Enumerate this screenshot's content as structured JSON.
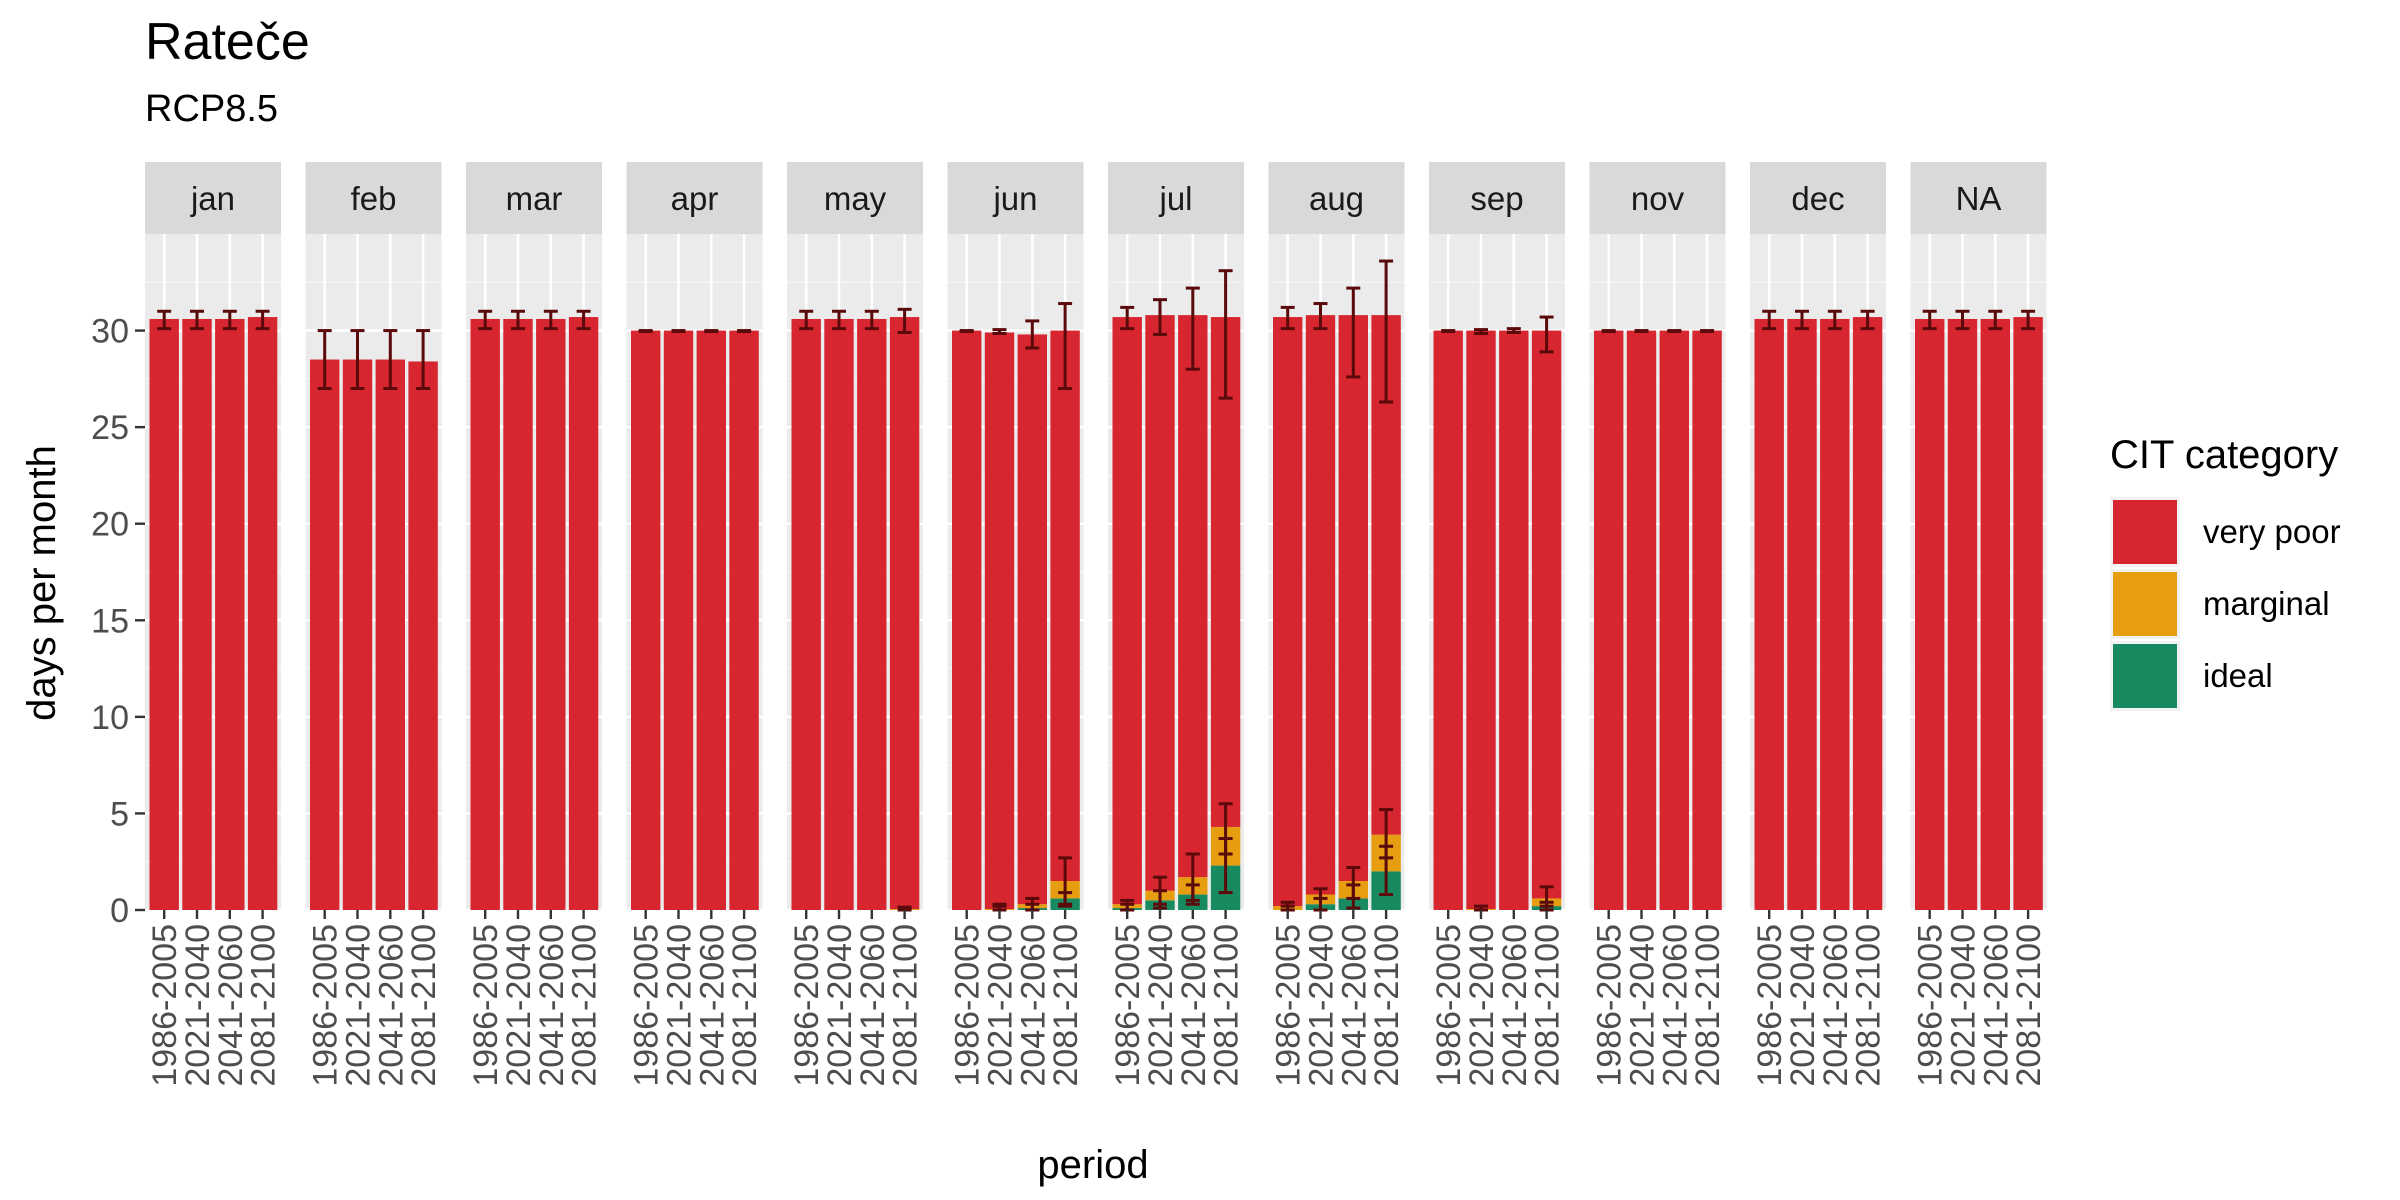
{
  "chart_data": {
    "type": "bar",
    "stacked": true,
    "faceted_by": "month",
    "title": "Rateče",
    "subtitle": "RCP8.5",
    "xlabel": "period",
    "ylabel": "days per month",
    "ylim": [
      0,
      35
    ],
    "y_ticks": [
      0,
      5,
      10,
      15,
      20,
      25,
      30
    ],
    "grid": true,
    "legend": {
      "title": "CIT category",
      "position": "right",
      "entries": [
        {
          "label": "very poor",
          "color": "#D7262F"
        },
        {
          "label": "marginal",
          "color": "#E69D0F"
        },
        {
          "label": "ideal",
          "color": "#188A60"
        }
      ]
    },
    "categories": [
      "1986-2005",
      "2021-2040",
      "2041-2060",
      "2081-2100"
    ],
    "facets": [
      {
        "label": "jan",
        "ideal": [
          0,
          0,
          0,
          0
        ],
        "marginal": [
          0,
          0,
          0,
          0
        ],
        "very_poor": [
          30.6,
          30.6,
          30.6,
          30.7
        ],
        "err_total": [
          [
            30.1,
            31.0
          ],
          [
            30.1,
            31.0
          ],
          [
            30.1,
            31.0
          ],
          [
            30.1,
            31.0
          ]
        ],
        "err_ideal": [
          null,
          null,
          null,
          null
        ],
        "err_marginal": [
          null,
          null,
          null,
          null
        ]
      },
      {
        "label": "feb",
        "ideal": [
          0,
          0,
          0,
          0
        ],
        "marginal": [
          0,
          0,
          0,
          0
        ],
        "very_poor": [
          28.5,
          28.5,
          28.5,
          28.4
        ],
        "err_total": [
          [
            27.0,
            30.0
          ],
          [
            27.0,
            30.0
          ],
          [
            27.0,
            30.0
          ],
          [
            27.0,
            30.0
          ]
        ],
        "err_ideal": [
          null,
          null,
          null,
          null
        ],
        "err_marginal": [
          null,
          null,
          null,
          null
        ]
      },
      {
        "label": "mar",
        "ideal": [
          0,
          0,
          0,
          0
        ],
        "marginal": [
          0,
          0,
          0,
          0
        ],
        "very_poor": [
          30.6,
          30.6,
          30.6,
          30.7
        ],
        "err_total": [
          [
            30.1,
            31.0
          ],
          [
            30.1,
            31.0
          ],
          [
            30.1,
            31.0
          ],
          [
            30.1,
            31.0
          ]
        ],
        "err_ideal": [
          null,
          null,
          null,
          null
        ],
        "err_marginal": [
          null,
          null,
          null,
          null
        ]
      },
      {
        "label": "apr",
        "ideal": [
          0,
          0,
          0,
          0
        ],
        "marginal": [
          0,
          0,
          0,
          0
        ],
        "very_poor": [
          30.0,
          30.0,
          30.0,
          30.0
        ],
        "err_total": [
          [
            29.95,
            30.0
          ],
          [
            29.95,
            30.0
          ],
          [
            29.95,
            30.0
          ],
          [
            29.95,
            30.0
          ]
        ],
        "err_ideal": [
          null,
          null,
          null,
          null
        ],
        "err_marginal": [
          null,
          null,
          null,
          null
        ]
      },
      {
        "label": "may",
        "ideal": [
          0,
          0,
          0,
          0
        ],
        "marginal": [
          0,
          0,
          0,
          0.05
        ],
        "very_poor": [
          30.6,
          30.6,
          30.6,
          30.65
        ],
        "err_total": [
          [
            30.1,
            31.0
          ],
          [
            30.1,
            31.0
          ],
          [
            30.1,
            31.0
          ],
          [
            29.9,
            31.1
          ]
        ],
        "err_ideal": [
          null,
          null,
          null,
          null
        ],
        "err_marginal": [
          null,
          null,
          null,
          [
            0,
            0.15
          ]
        ]
      },
      {
        "label": "jun",
        "ideal": [
          0,
          0,
          0.1,
          0.6
        ],
        "marginal": [
          0,
          0.05,
          0.2,
          0.9
        ],
        "very_poor": [
          30.0,
          29.85,
          29.5,
          28.5
        ],
        "err_total": [
          [
            29.95,
            30.0
          ],
          [
            29.85,
            30.05
          ],
          [
            29.1,
            30.5
          ],
          [
            27.0,
            31.4
          ]
        ],
        "err_ideal": [
          null,
          [
            0,
            0.2
          ],
          [
            0,
            0.3
          ],
          [
            0.3,
            0.9
          ]
        ],
        "err_marginal": [
          null,
          [
            0,
            0.3
          ],
          [
            0,
            0.6
          ],
          [
            0.2,
            2.7
          ]
        ]
      },
      {
        "label": "jul",
        "ideal": [
          0.1,
          0.5,
          0.8,
          2.3
        ],
        "marginal": [
          0.2,
          0.5,
          0.9,
          2.0
        ],
        "very_poor": [
          30.4,
          29.8,
          29.1,
          26.4
        ],
        "err_total": [
          [
            30.1,
            31.2
          ],
          [
            29.8,
            31.6
          ],
          [
            28.0,
            32.2
          ],
          [
            26.5,
            33.1
          ]
        ],
        "err_ideal": [
          [
            0,
            0.3
          ],
          [
            0.1,
            1.0
          ],
          [
            0.3,
            1.3
          ],
          [
            0.9,
            3.7
          ]
        ],
        "err_marginal": [
          [
            0,
            0.5
          ],
          [
            0.3,
            1.7
          ],
          [
            0.5,
            2.9
          ],
          [
            2.9,
            5.5
          ]
        ]
      },
      {
        "label": "aug",
        "ideal": [
          0,
          0.3,
          0.6,
          2.0
        ],
        "marginal": [
          0.2,
          0.5,
          0.9,
          1.9
        ],
        "very_poor": [
          30.5,
          30.0,
          29.3,
          26.9
        ],
        "err_total": [
          [
            30.1,
            31.2
          ],
          [
            30.1,
            31.4
          ],
          [
            27.6,
            32.2
          ],
          [
            26.3,
            33.6
          ]
        ],
        "err_ideal": [
          [
            0,
            0.2
          ],
          [
            0,
            0.6
          ],
          [
            0.1,
            1.3
          ],
          [
            0.8,
            3.3
          ]
        ],
        "err_marginal": [
          [
            0,
            0.4
          ],
          [
            0,
            1.1
          ],
          [
            0.6,
            2.2
          ],
          [
            2.7,
            5.2
          ]
        ]
      },
      {
        "label": "sep",
        "ideal": [
          0,
          0,
          0,
          0.2
        ],
        "marginal": [
          0,
          0.05,
          0,
          0.4
        ],
        "very_poor": [
          30.0,
          29.95,
          30.0,
          29.4
        ],
        "err_total": [
          [
            29.95,
            30.0
          ],
          [
            29.85,
            30.05
          ],
          [
            29.9,
            30.1
          ],
          [
            28.9,
            30.7
          ]
        ],
        "err_ideal": [
          null,
          null,
          null,
          [
            0,
            0.4
          ]
        ],
        "err_marginal": [
          null,
          [
            0,
            0.2
          ],
          null,
          [
            0.2,
            1.2
          ]
        ]
      },
      {
        "label": "nov",
        "ideal": [
          0,
          0,
          0,
          0
        ],
        "marginal": [
          0,
          0,
          0,
          0
        ],
        "very_poor": [
          30.0,
          30.0,
          30.0,
          30.0
        ],
        "err_total": [
          [
            29.95,
            30.0
          ],
          [
            29.95,
            30.0
          ],
          [
            29.95,
            30.0
          ],
          [
            29.95,
            30.0
          ]
        ],
        "err_ideal": [
          null,
          null,
          null,
          null
        ],
        "err_marginal": [
          null,
          null,
          null,
          null
        ]
      },
      {
        "label": "dec",
        "ideal": [
          0,
          0,
          0,
          0
        ],
        "marginal": [
          0,
          0,
          0,
          0
        ],
        "very_poor": [
          30.6,
          30.6,
          30.6,
          30.7
        ],
        "err_total": [
          [
            30.1,
            31.0
          ],
          [
            30.1,
            31.0
          ],
          [
            30.1,
            31.0
          ],
          [
            30.1,
            31.0
          ]
        ],
        "err_ideal": [
          null,
          null,
          null,
          null
        ],
        "err_marginal": [
          null,
          null,
          null,
          null
        ]
      },
      {
        "label": "NA",
        "ideal": [
          0,
          0,
          0,
          0
        ],
        "marginal": [
          0,
          0,
          0,
          0
        ],
        "very_poor": [
          30.6,
          30.6,
          30.6,
          30.7
        ],
        "err_total": [
          [
            30.1,
            31.0
          ],
          [
            30.1,
            31.0
          ],
          [
            30.1,
            31.0
          ],
          [
            30.1,
            31.0
          ]
        ],
        "err_ideal": [
          null,
          null,
          null,
          null
        ],
        "err_marginal": [
          null,
          null,
          null,
          null
        ]
      }
    ]
  }
}
